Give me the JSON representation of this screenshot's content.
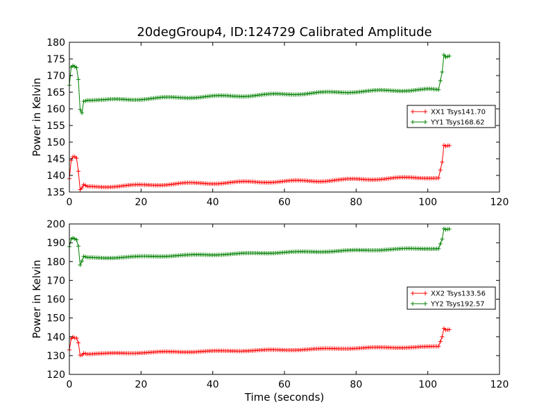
{
  "title": "20degGroup4, ID:124729 Calibrated Amplitude",
  "colors": {
    "xx": "#ff0000",
    "yy": "#008000",
    "frame": "#000000"
  },
  "chart_data": [
    {
      "type": "line",
      "title": "20degGroup4, ID:124729 Calibrated Amplitude",
      "xlabel": "",
      "ylabel": "Power in Kelvin",
      "xlim": [
        0,
        120
      ],
      "ylim": [
        135,
        180
      ],
      "xticks": [
        "0",
        "20",
        "40",
        "60",
        "80",
        "100",
        "120"
      ],
      "yticks": [
        "135",
        "140",
        "145",
        "150",
        "155",
        "160",
        "165",
        "170",
        "175",
        "180"
      ],
      "grid": false,
      "legend_position": "right",
      "marker": "plus",
      "series": [
        {
          "name": "XX1 Tsys141.70",
          "color": "#ff0000",
          "points": [
            [
              0,
              139
            ],
            [
              0.5,
              144.5
            ],
            [
              1,
              145.5
            ],
            [
              1.5,
              145.5
            ],
            [
              2,
              145
            ],
            [
              2.5,
              141
            ],
            [
              3,
              135.5
            ],
            [
              3.5,
              136
            ],
            [
              4,
              137
            ],
            [
              5,
              136.5
            ],
            [
              10,
              136.7
            ],
            [
              20,
              137
            ],
            [
              30,
              137.5
            ],
            [
              40,
              137.7
            ],
            [
              50,
              138
            ],
            [
              60,
              138.2
            ],
            [
              70,
              138.4
            ],
            [
              80,
              138.8
            ],
            [
              90,
              139.1
            ],
            [
              100,
              139.4
            ],
            [
              103,
              139.3
            ],
            [
              104,
              144
            ],
            [
              104.5,
              149
            ],
            [
              105,
              148.7
            ],
            [
              106,
              148.8
            ]
          ]
        },
        {
          "name": "YY1 Tsys168.62",
          "color": "#008000",
          "points": [
            [
              0,
              167
            ],
            [
              0.5,
              172.5
            ],
            [
              1,
              173
            ],
            [
              1.5,
              172.8
            ],
            [
              2,
              172.5
            ],
            [
              2.5,
              169
            ],
            [
              3,
              160
            ],
            [
              3.5,
              159
            ],
            [
              4,
              162.5
            ],
            [
              5,
              162.8
            ],
            [
              10,
              162.6
            ],
            [
              20,
              163
            ],
            [
              30,
              163.4
            ],
            [
              40,
              163.7
            ],
            [
              50,
              164
            ],
            [
              60,
              164.4
            ],
            [
              70,
              164.8
            ],
            [
              80,
              165.2
            ],
            [
              90,
              165.5
            ],
            [
              100,
              165.8
            ],
            [
              103,
              165.6
            ],
            [
              104,
              171
            ],
            [
              104.5,
              176.2
            ],
            [
              105,
              175.6
            ],
            [
              106,
              176
            ]
          ]
        }
      ]
    },
    {
      "type": "line",
      "title": "",
      "xlabel": "Time (seconds)",
      "ylabel": "Power in Kelvin",
      "xlim": [
        0,
        120
      ],
      "ylim": [
        120,
        200
      ],
      "xticks": [
        "0",
        "20",
        "40",
        "60",
        "80",
        "100",
        "120"
      ],
      "yticks": [
        "120",
        "130",
        "140",
        "150",
        "160",
        "170",
        "180",
        "190",
        "200"
      ],
      "grid": false,
      "legend_position": "right",
      "marker": "plus",
      "series": [
        {
          "name": "XX2 Tsys133.56",
          "color": "#ff0000",
          "points": [
            [
              0,
              133
            ],
            [
              0.5,
              139
            ],
            [
              1,
              140
            ],
            [
              1.5,
              139.5
            ],
            [
              2,
              139.5
            ],
            [
              2.5,
              137
            ],
            [
              3,
              130.5
            ],
            [
              3.5,
              130.5
            ],
            [
              4,
              131.5
            ],
            [
              5,
              131
            ],
            [
              10,
              131
            ],
            [
              20,
              131.6
            ],
            [
              30,
              132
            ],
            [
              40,
              132.3
            ],
            [
              50,
              132.7
            ],
            [
              60,
              133
            ],
            [
              70,
              133.5
            ],
            [
              80,
              134
            ],
            [
              90,
              134.3
            ],
            [
              100,
              134.6
            ],
            [
              103,
              134.8
            ],
            [
              104,
              140
            ],
            [
              104.5,
              144.5
            ],
            [
              105,
              143.8
            ],
            [
              106,
              144
            ]
          ]
        },
        {
          "name": "YY2 Tsys192.57",
          "color": "#008000",
          "points": [
            [
              0,
              188
            ],
            [
              0.5,
              192
            ],
            [
              1,
              192.5
            ],
            [
              1.5,
              192
            ],
            [
              2,
              191.5
            ],
            [
              2.5,
              188
            ],
            [
              3,
              178
            ],
            [
              3.5,
              180
            ],
            [
              4,
              182.5
            ],
            [
              5,
              182
            ],
            [
              10,
              182
            ],
            [
              20,
              182.6
            ],
            [
              30,
              183.2
            ],
            [
              40,
              183.7
            ],
            [
              50,
              184.3
            ],
            [
              60,
              184.9
            ],
            [
              70,
              185.3
            ],
            [
              80,
              185.9
            ],
            [
              90,
              186.5
            ],
            [
              100,
              187
            ],
            [
              103,
              187
            ],
            [
              104,
              192
            ],
            [
              104.5,
              197.5
            ],
            [
              105,
              197
            ],
            [
              106,
              197.2
            ]
          ]
        }
      ]
    }
  ]
}
